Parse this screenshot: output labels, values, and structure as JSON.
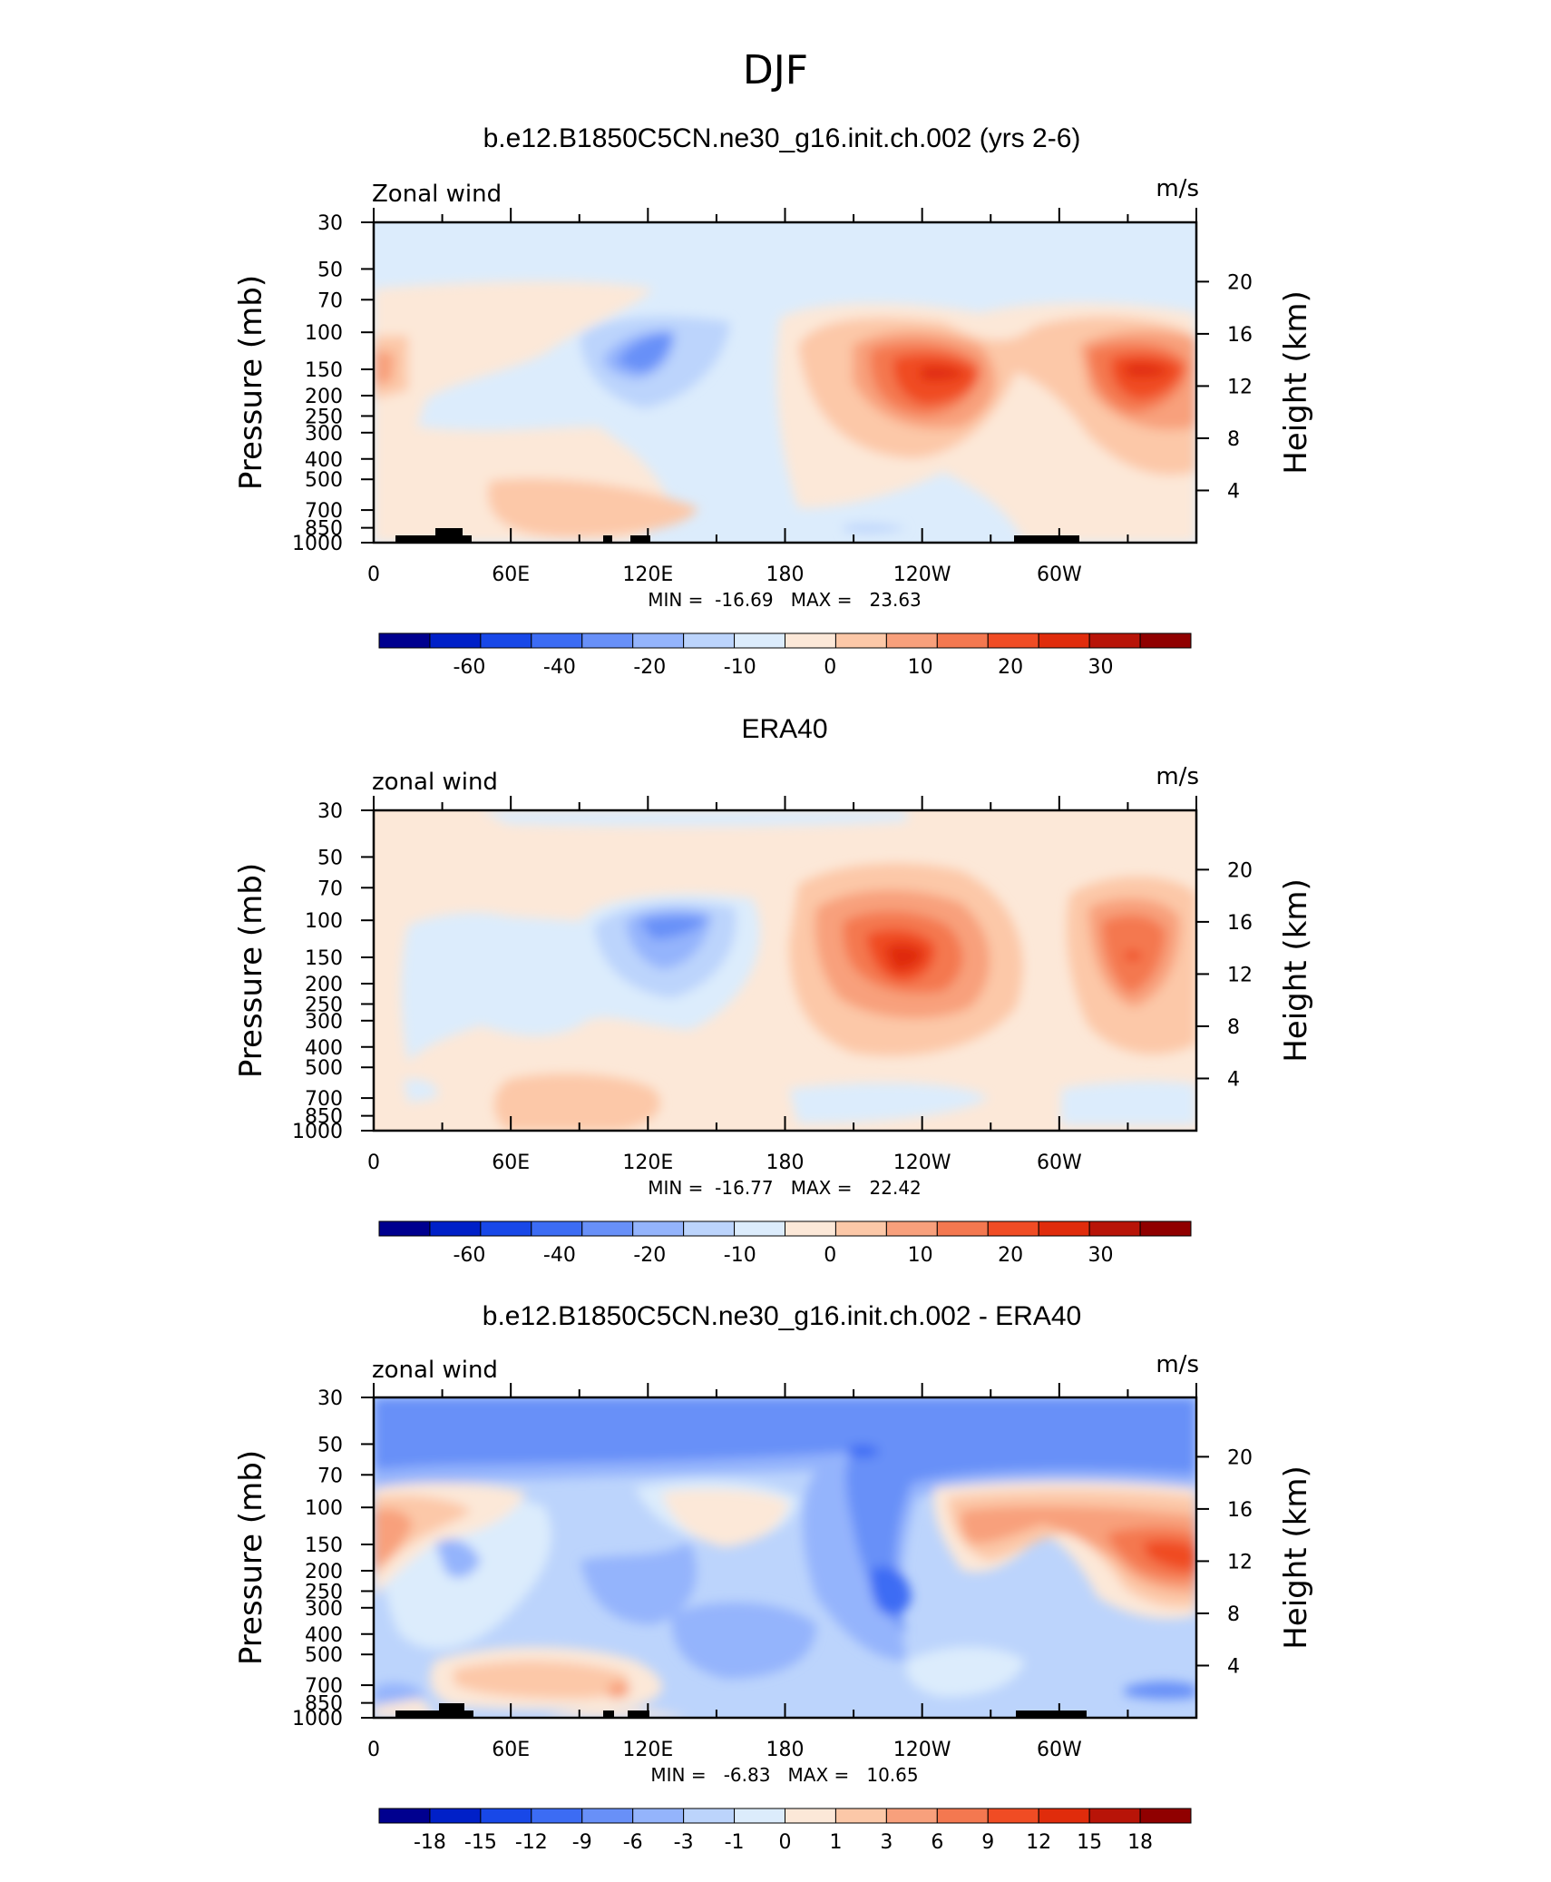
{
  "page_title": "DJF",
  "common": {
    "x_ticks": [
      "0",
      "60E",
      "120E",
      "180",
      "120W",
      "60W"
    ],
    "y_left_label": "Pressure (mb)",
    "y_right_label": "Height (km)",
    "y_left_ticks": [
      "30",
      "50",
      "70",
      "100",
      "150",
      "200",
      "250",
      "300",
      "400",
      "500",
      "700",
      "850",
      "1000"
    ],
    "y_right_ticks": [
      "20",
      "16",
      "12",
      "8",
      "4"
    ]
  },
  "chart_data": [
    {
      "type": "contour",
      "title": "b.e12.B1850C5CN.ne30_g16.init.ch.002 (yrs 2-6)",
      "left_string": "Zonal wind",
      "right_string": "m/s",
      "min_max": "MIN =  -16.69   MAX =   23.63",
      "ylim": [
        1000,
        30
      ],
      "xlim": [
        0,
        360
      ],
      "colorbar": {
        "levels": [
          "-60",
          "-40",
          "-20",
          "-10",
          "0",
          "10",
          "20",
          "30"
        ],
        "colors": [
          "#00008f",
          "#0020c8",
          "#1848e8",
          "#3c6cf4",
          "#6890f8",
          "#94b4fc",
          "#bcd4fc",
          "#dcecfc",
          "#fce8d8",
          "#fcc8a8",
          "#f8a07c",
          "#f47850",
          "#f04c24",
          "#e02c0c",
          "#b81408",
          "#900000"
        ]
      }
    },
    {
      "type": "contour",
      "title": "ERA40",
      "left_string": "zonal wind",
      "right_string": "m/s",
      "min_max": "MIN =  -16.77   MAX =   22.42",
      "ylim": [
        1000,
        30
      ],
      "xlim": [
        0,
        360
      ],
      "colorbar": {
        "levels": [
          "-60",
          "-40",
          "-20",
          "-10",
          "0",
          "10",
          "20",
          "30"
        ],
        "colors": [
          "#00008f",
          "#0020c8",
          "#1848e8",
          "#3c6cf4",
          "#6890f8",
          "#94b4fc",
          "#bcd4fc",
          "#dcecfc",
          "#fce8d8",
          "#fcc8a8",
          "#f8a07c",
          "#f47850",
          "#f04c24",
          "#e02c0c",
          "#b81408",
          "#900000"
        ]
      }
    },
    {
      "type": "contour",
      "title": "b.e12.B1850C5CN.ne30_g16.init.ch.002 - ERA40",
      "left_string": "zonal wind",
      "right_string": "m/s",
      "min_max": "MIN =   -6.83   MAX =   10.65",
      "ylim": [
        1000,
        30
      ],
      "xlim": [
        0,
        360
      ],
      "colorbar": {
        "levels": [
          "-18",
          "-15",
          "-12",
          "-9",
          "-6",
          "-3",
          "-1",
          "0",
          "1",
          "3",
          "6",
          "9",
          "12",
          "15",
          "18"
        ],
        "colors": [
          "#00008f",
          "#0020c8",
          "#1848e8",
          "#3c6cf4",
          "#6890f8",
          "#94b4fc",
          "#bcd4fc",
          "#dcecfc",
          "#fce8d8",
          "#fcc8a8",
          "#f8a07c",
          "#f47850",
          "#f04c24",
          "#e02c0c",
          "#b81408",
          "#900000"
        ]
      }
    }
  ]
}
